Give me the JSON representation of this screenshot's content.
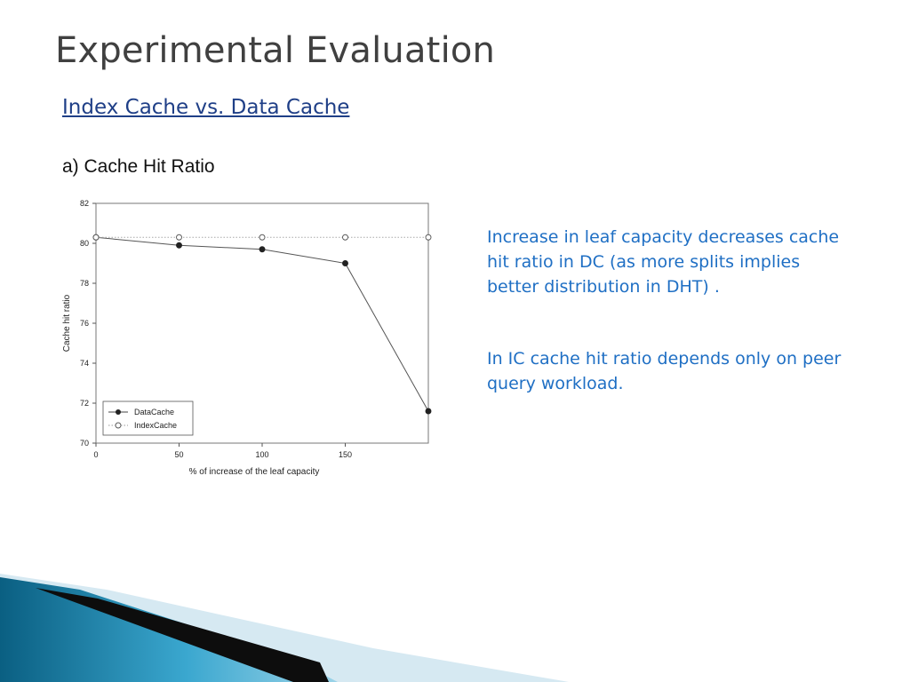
{
  "slide": {
    "title": "Experimental Evaluation",
    "subtitle": "Index Cache vs. Data Cache",
    "section_label": "a) Cache Hit Ratio",
    "notes": [
      "Increase in leaf capacity decreases cache hit ratio in DC (as more splits implies better distribution in DHT) .",
      "In IC cache hit ratio depends only on peer query workload."
    ],
    "colors": {
      "title": "#404040",
      "subtitle": "#1f3f87",
      "notes": "#1f6fc4",
      "swoosh_dark": "#0b6d8f",
      "swoosh_light": "#cfe5ef"
    }
  },
  "chart_data": {
    "type": "line",
    "title": "",
    "xlabel": "% of increase of the leaf capacity",
    "ylabel": "Cache hit ratio",
    "xlim": [
      0,
      200
    ],
    "ylim": [
      70,
      82
    ],
    "xticks": [
      0,
      50,
      100,
      150
    ],
    "yticks": [
      70,
      72,
      74,
      76,
      78,
      80,
      82
    ],
    "grid": false,
    "legend_position": "bottom-left",
    "series": [
      {
        "name": "DataCache",
        "marker": "filled-circle",
        "line": "solid",
        "x": [
          0,
          50,
          100,
          150,
          200
        ],
        "values": [
          80.3,
          79.9,
          79.7,
          79.0,
          71.6
        ]
      },
      {
        "name": "IndexCache",
        "marker": "open-circle",
        "line": "dotted",
        "x": [
          0,
          50,
          100,
          150,
          200
        ],
        "values": [
          80.3,
          80.3,
          80.3,
          80.3,
          80.3
        ]
      }
    ]
  }
}
